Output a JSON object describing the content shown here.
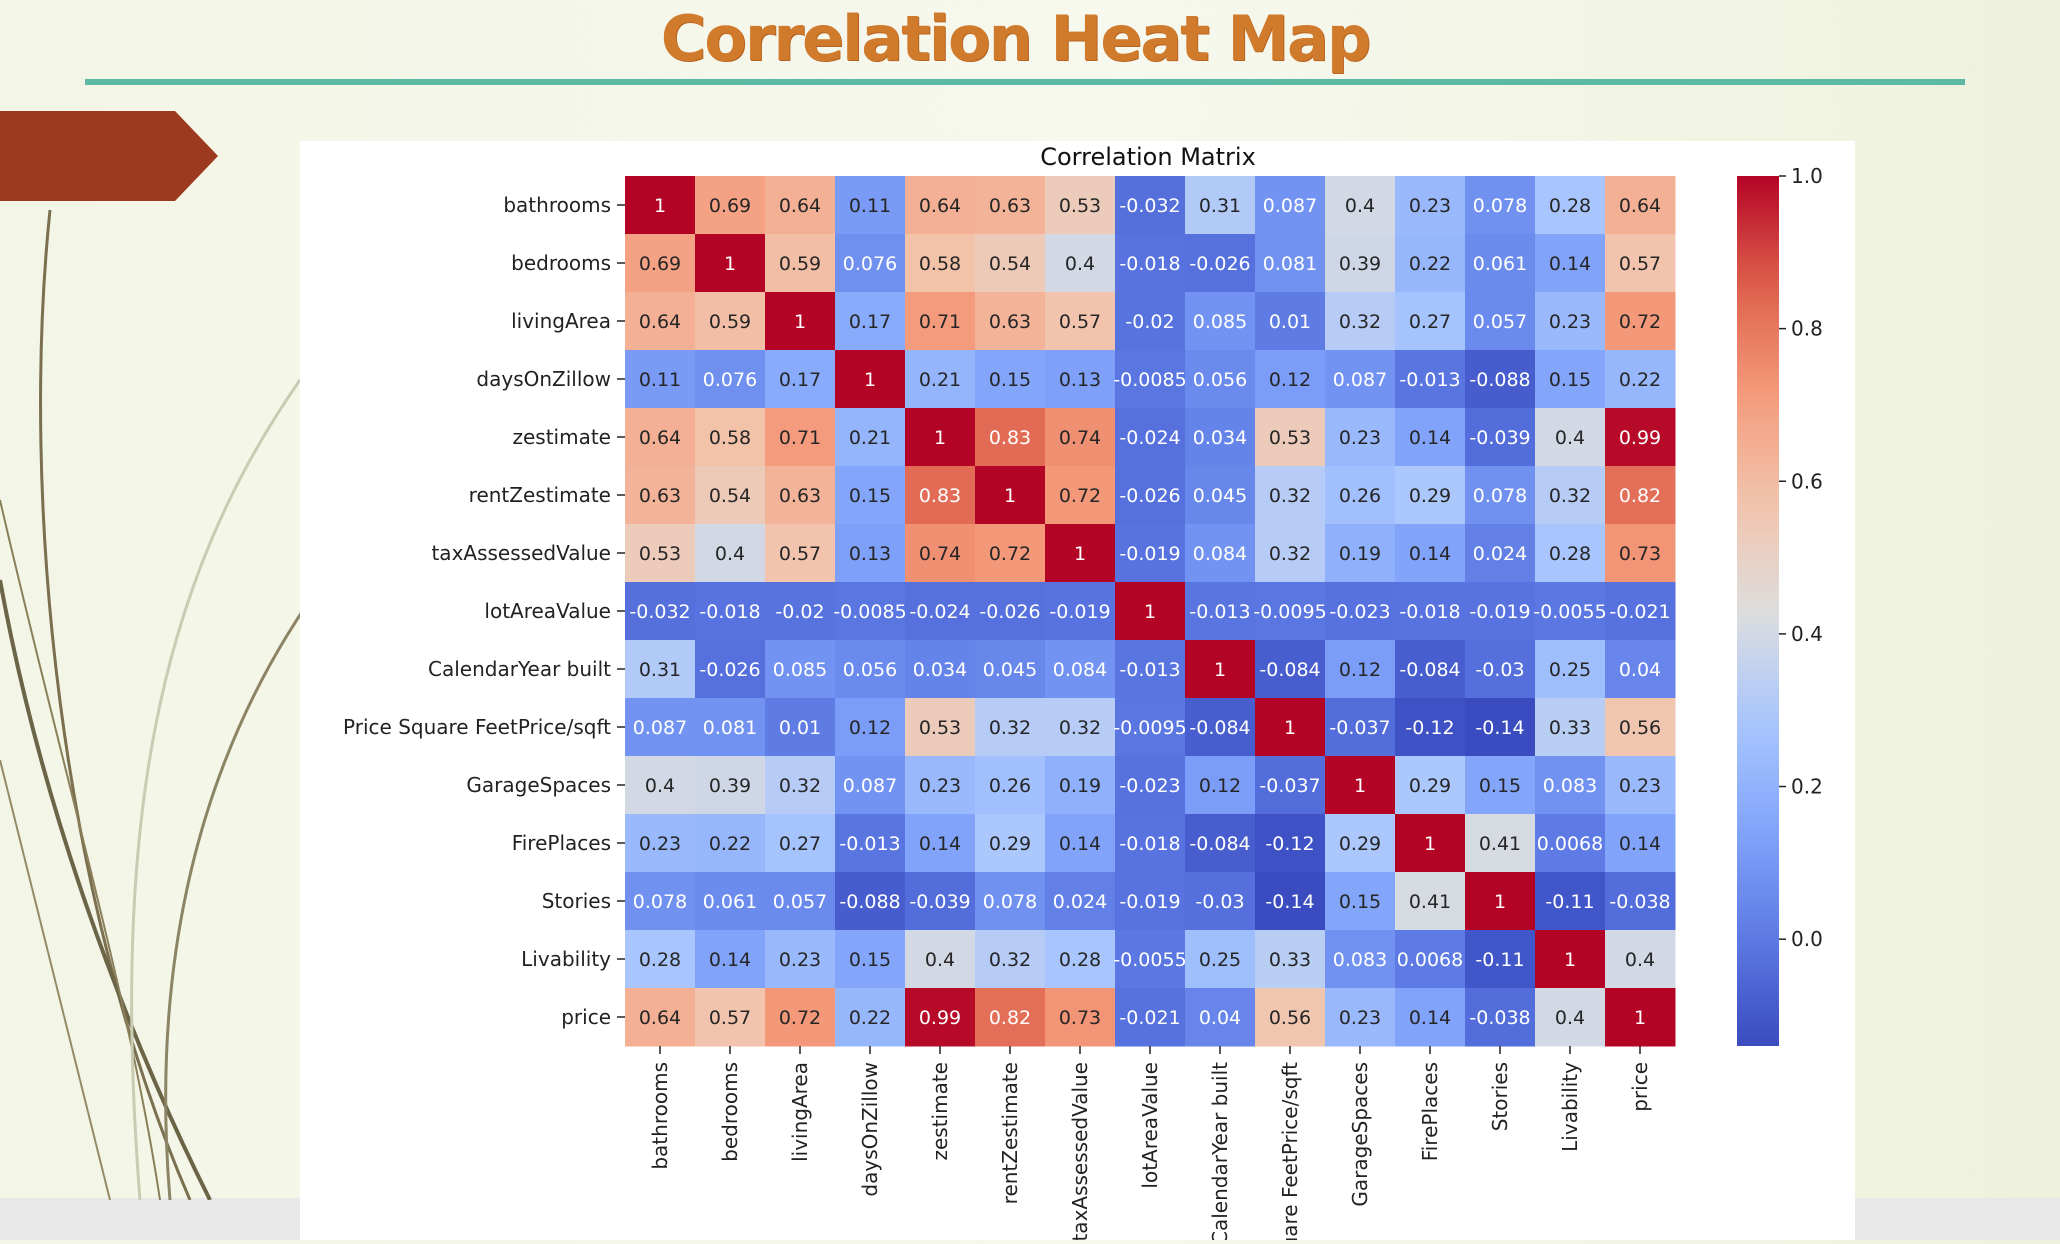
{
  "slide": {
    "title": "Correlation Heat Map",
    "colors": {
      "title": "#d07a2c",
      "rule": "#5db9a3",
      "tab": "#9b3a1f"
    }
  },
  "chart_data": {
    "type": "heatmap",
    "title": "Correlation Matrix",
    "colormap": "coolwarm",
    "vmin": -0.14,
    "vmax": 1.0,
    "colorbar_ticks": [
      1.0,
      0.8,
      0.6,
      0.4,
      0.2,
      0.0
    ],
    "colorbar_tick_labels": [
      "1.0",
      "0.8",
      "0.6",
      "0.4",
      "0.2",
      "0.0"
    ],
    "row_labels": [
      "bathrooms",
      "bedrooms",
      "livingArea",
      "daysOnZillow",
      "zestimate",
      "rentZestimate",
      "taxAssessedValue",
      "lotAreaValue",
      "CalendarYear built",
      "Price Square FeetPrice/sqft",
      "GarageSpaces",
      "FirePlaces",
      "Stories",
      "Livability",
      "price"
    ],
    "col_labels": [
      "bathrooms",
      "bedrooms",
      "livingArea",
      "daysOnZillow",
      "zestimate",
      "rentZestimate",
      "taxAssessedValue",
      "lotAreaValue",
      "CalendarYear built",
      "uare FeetPrice/sqft",
      "GarageSpaces",
      "FirePlaces",
      "Stories",
      "Livability",
      "price"
    ],
    "values": [
      [
        1,
        0.69,
        0.64,
        0.11,
        0.64,
        0.63,
        0.53,
        -0.032,
        0.31,
        0.087,
        0.4,
        0.23,
        0.078,
        0.28,
        0.64
      ],
      [
        0.69,
        1,
        0.59,
        0.076,
        0.58,
        0.54,
        0.4,
        -0.018,
        -0.026,
        0.081,
        0.39,
        0.22,
        0.061,
        0.14,
        0.57
      ],
      [
        0.64,
        0.59,
        1,
        0.17,
        0.71,
        0.63,
        0.57,
        -0.02,
        0.085,
        0.01,
        0.32,
        0.27,
        0.057,
        0.23,
        0.72
      ],
      [
        0.11,
        0.076,
        0.17,
        1,
        0.21,
        0.15,
        0.13,
        -0.0085,
        0.056,
        0.12,
        0.087,
        -0.013,
        -0.088,
        0.15,
        0.22
      ],
      [
        0.64,
        0.58,
        0.71,
        0.21,
        1,
        0.83,
        0.74,
        -0.024,
        0.034,
        0.53,
        0.23,
        0.14,
        -0.039,
        0.4,
        0.99
      ],
      [
        0.63,
        0.54,
        0.63,
        0.15,
        0.83,
        1,
        0.72,
        -0.026,
        0.045,
        0.32,
        0.26,
        0.29,
        0.078,
        0.32,
        0.82
      ],
      [
        0.53,
        0.4,
        0.57,
        0.13,
        0.74,
        0.72,
        1,
        -0.019,
        0.084,
        0.32,
        0.19,
        0.14,
        0.024,
        0.28,
        0.73
      ],
      [
        -0.032,
        -0.018,
        -0.02,
        -0.0085,
        -0.024,
        -0.026,
        -0.019,
        1,
        -0.013,
        -0.0095,
        -0.023,
        -0.018,
        -0.019,
        -0.0055,
        -0.021
      ],
      [
        0.31,
        -0.026,
        0.085,
        0.056,
        0.034,
        0.045,
        0.084,
        -0.013,
        1,
        -0.084,
        0.12,
        -0.084,
        -0.03,
        0.25,
        0.04
      ],
      [
        0.087,
        0.081,
        0.01,
        0.12,
        0.53,
        0.32,
        0.32,
        -0.0095,
        -0.084,
        1,
        -0.037,
        -0.12,
        -0.14,
        0.33,
        0.56
      ],
      [
        0.4,
        0.39,
        0.32,
        0.087,
        0.23,
        0.26,
        0.19,
        -0.023,
        0.12,
        -0.037,
        1,
        0.29,
        0.15,
        0.083,
        0.23
      ],
      [
        0.23,
        0.22,
        0.27,
        -0.013,
        0.14,
        0.29,
        0.14,
        -0.018,
        -0.084,
        -0.12,
        0.29,
        1,
        0.41,
        0.0068,
        0.14
      ],
      [
        0.078,
        0.061,
        0.057,
        -0.088,
        -0.039,
        0.078,
        0.024,
        -0.019,
        -0.03,
        -0.14,
        0.15,
        0.41,
        1,
        -0.11,
        -0.038
      ],
      [
        0.28,
        0.14,
        0.23,
        0.15,
        0.4,
        0.32,
        0.28,
        -0.0055,
        0.25,
        0.33,
        0.083,
        0.0068,
        -0.11,
        1,
        0.4
      ],
      [
        0.64,
        0.57,
        0.72,
        0.22,
        0.99,
        0.82,
        0.73,
        -0.021,
        0.04,
        0.56,
        0.23,
        0.14,
        -0.038,
        0.4,
        1
      ]
    ]
  }
}
